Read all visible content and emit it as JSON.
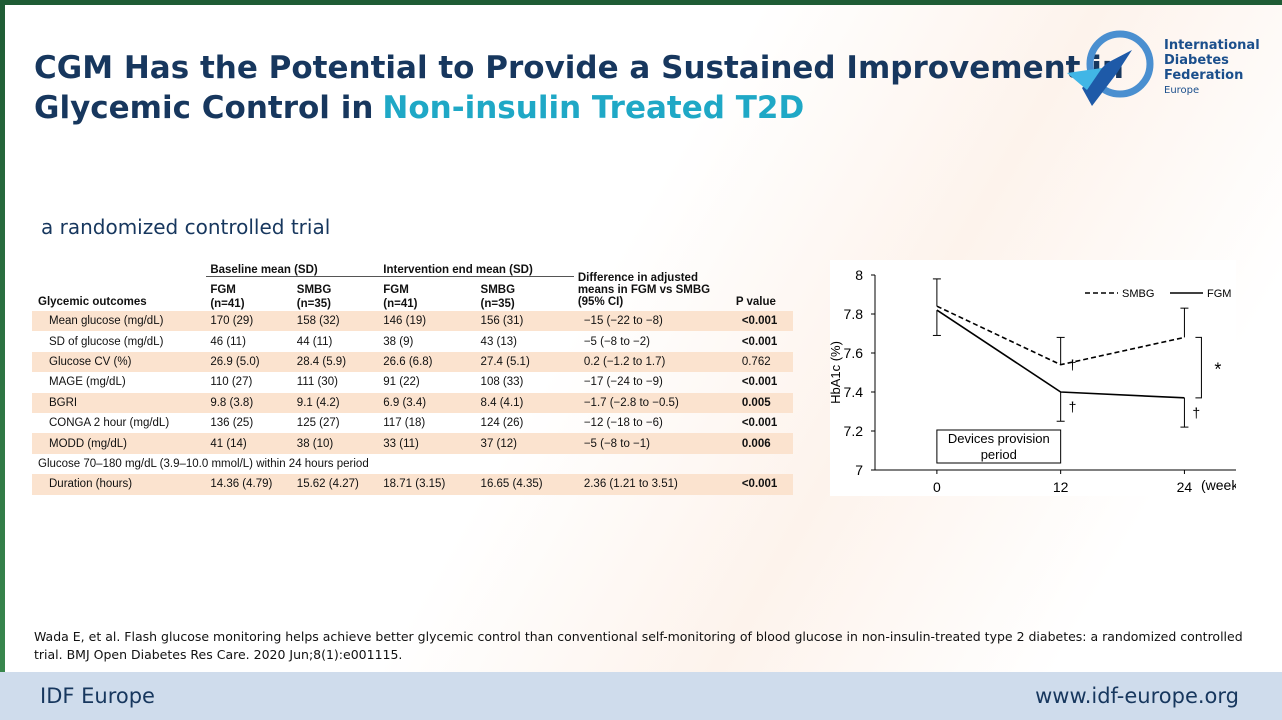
{
  "header": {
    "title_line1": "CGM Has the Potential to Provide a Sustained Improvement in",
    "title_line2a": "Glycemic Control in",
    "title_line2b": "Non-insulin Treated T2D",
    "logo": [
      "International",
      "Diabetes",
      "Federation",
      "Europe"
    ]
  },
  "subtitle": "a randomized controlled trial",
  "table": {
    "col_label": "Glycemic outcomes",
    "group_baseline": "Baseline mean (SD)",
    "group_end": "Intervention end mean (SD)",
    "col_diff": "Difference in adjusted means in FGM vs SMBG (95% CI)",
    "col_p": "P value",
    "subheaders": [
      [
        "FGM",
        "(n=41)"
      ],
      [
        "SMBG",
        "(n=35)"
      ],
      [
        "FGM",
        "(n=41)"
      ],
      [
        "SMBG",
        "(n=35)"
      ]
    ],
    "rows": [
      {
        "label": "Mean glucose (mg/dL)",
        "values": [
          "170 (29)",
          "158 (32)",
          "146 (19)",
          "156 (31)"
        ],
        "diff": "−15 (−22 to −8)",
        "p": "<0.001",
        "p_significant": true
      },
      {
        "label": "SD of glucose (mg/dL)",
        "values": [
          "46 (11)",
          "44 (11)",
          "38 (9)",
          "43 (13)"
        ],
        "diff": "−5 (−8 to −2)",
        "p": "<0.001",
        "p_significant": true
      },
      {
        "label": "Glucose CV (%)",
        "values": [
          "26.9 (5.0)",
          "28.4 (5.9)",
          "26.6 (6.8)",
          "27.4 (5.1)"
        ],
        "diff": "0.2 (−1.2 to 1.7)",
        "p": "0.762",
        "p_significant": false
      },
      {
        "label": "MAGE (mg/dL)",
        "values": [
          "110 (27)",
          "111 (30)",
          "91 (22)",
          "108 (33)"
        ],
        "diff": "−17 (−24 to −9)",
        "p": "<0.001",
        "p_significant": true
      },
      {
        "label": "BGRI",
        "values": [
          "9.8 (3.8)",
          "9.1 (4.2)",
          "6.9 (3.4)",
          "8.4 (4.1)"
        ],
        "diff": "−1.7 (−2.8 to −0.5)",
        "p": "0.005",
        "p_significant": true
      },
      {
        "label": "CONGA 2 hour (mg/dL)",
        "values": [
          "136 (25)",
          "125 (27)",
          "117 (18)",
          "124 (26)"
        ],
        "diff": "−12 (−18 to −6)",
        "p": "<0.001",
        "p_significant": true
      },
      {
        "label": "MODD (mg/dL)",
        "values": [
          "41 (14)",
          "38 (10)",
          "33 (11)",
          "37 (12)"
        ],
        "diff": "−5 (−8 to −1)",
        "p": "0.006",
        "p_significant": true
      },
      {
        "section": "Glucose 70–180 mg/dL (3.9–10.0 mmol/L) within 24 hours period"
      },
      {
        "label": "Duration (hours)",
        "values": [
          "14.36 (4.79)",
          "15.62 (4.27)",
          "18.71 (3.15)",
          "16.65 (4.35)"
        ],
        "diff": "2.36 (1.21 to 3.51)",
        "p": "<0.001",
        "p_significant": true
      }
    ]
  },
  "chart_data": {
    "type": "line",
    "y_label": "HbA1c (%)",
    "x_label": "(week",
    "x": [
      0,
      12,
      24
    ],
    "xlim": [
      -6,
      29
    ],
    "xticks": [
      0,
      12,
      24
    ],
    "ylim": [
      7,
      8
    ],
    "yticks": [
      7,
      7.2,
      7.4,
      7.6,
      7.8,
      8
    ],
    "legend": "upper right",
    "series": [
      {
        "name": "SMBG",
        "color": "#000000",
        "dash": true,
        "values": [
          7.84,
          7.54,
          7.68
        ],
        "errors": [
          0.14,
          0.14,
          0.15
        ],
        "error_direction": "up"
      },
      {
        "name": "FGM",
        "color": "#000000",
        "dash": false,
        "values": [
          7.82,
          7.4,
          7.37
        ],
        "errors": [
          0.13,
          0.15,
          0.15
        ],
        "error_direction": "down"
      }
    ],
    "annotations": [
      "†",
      "†",
      "†",
      "*",
      "Devices provision period"
    ]
  },
  "citation": "Wada E, et al. Flash glucose monitoring helps achieve better glycemic control than conventional self-monitoring of blood glucose in non-insulin-treated type 2 diabetes: a randomized controlled trial. BMJ Open Diabetes Res Care. 2020 Jun;8(1):e001115.",
  "footer": {
    "left": "IDF Europe",
    "right": "www.idf-europe.org"
  }
}
